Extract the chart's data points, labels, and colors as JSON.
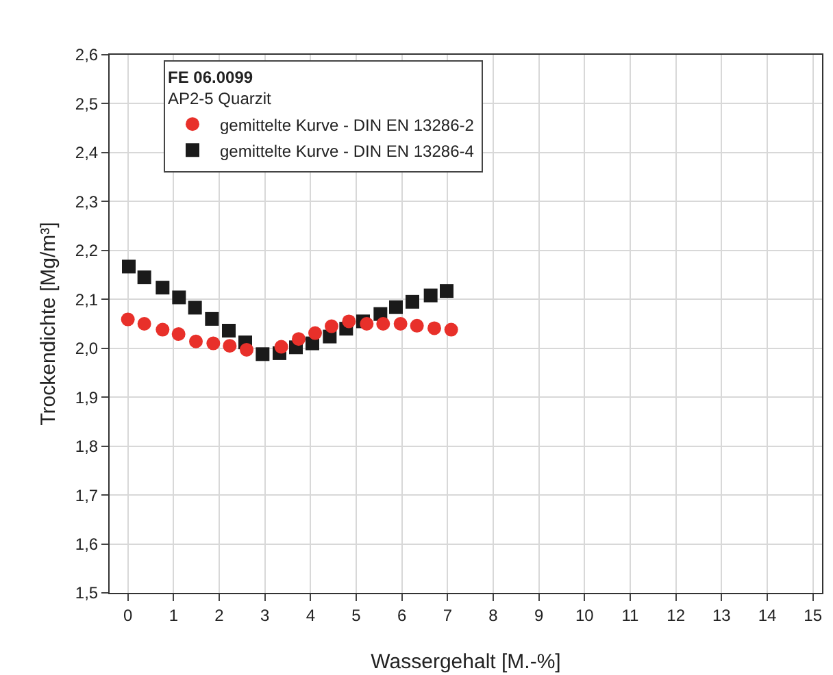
{
  "chart_data": {
    "type": "scatter",
    "xlabel": "Wassergehalt [M.-%]",
    "ylabel": "Trockendichte [Mg/m³]",
    "legend_title": "FE 06.0099",
    "annotations": [
      "AP2-5 Quarzit"
    ],
    "xlim": [
      -0.4,
      15.2
    ],
    "xticks": [
      0,
      1,
      2,
      3,
      4,
      5,
      6,
      7,
      8,
      9,
      10,
      11,
      12,
      13,
      14,
      15
    ],
    "ylim": [
      1.5,
      2.6
    ],
    "yticks": [
      {
        "value": 1.5,
        "label": "1,5"
      },
      {
        "value": 1.6,
        "label": "1,6"
      },
      {
        "value": 1.7,
        "label": "1,7"
      },
      {
        "value": 1.8,
        "label": "1,8"
      },
      {
        "value": 1.9,
        "label": "1,9"
      },
      {
        "value": 2.0,
        "label": "2,0"
      },
      {
        "value": 2.1,
        "label": "2,1"
      },
      {
        "value": 2.2,
        "label": "2,2"
      },
      {
        "value": 2.3,
        "label": "2,3"
      },
      {
        "value": 2.4,
        "label": "2,4"
      },
      {
        "value": 2.5,
        "label": "2,5"
      },
      {
        "value": 2.6,
        "label": "2,6"
      }
    ],
    "grid": true,
    "legend": "top",
    "series": [
      {
        "name": "gemittelte Kurve - DIN EN 13286-2",
        "color": "#e8302a",
        "marker": "circle",
        "x": [
          0,
          0.36,
          0.76,
          1.11,
          1.49,
          1.87,
          2.23,
          2.6,
          2.97,
          3.36,
          3.74,
          4.1,
          4.46,
          4.84,
          5.23,
          5.59,
          5.97,
          6.33,
          6.71,
          7.08
        ],
        "values": [
          2.059,
          2.05,
          2.038,
          2.029,
          2.014,
          2.01,
          2.005,
          1.997,
          null,
          2.003,
          2.019,
          2.031,
          2.045,
          2.055,
          2.05,
          2.05,
          2.05,
          2.046,
          2.041,
          2.038
        ]
      },
      {
        "name": "gemittelte Kurve - DIN EN 13286-4",
        "color": "#1a1a1a",
        "marker": "square",
        "x": [
          0.02,
          0.36,
          0.76,
          1.12,
          1.47,
          1.84,
          2.21,
          2.57,
          2.95,
          3.32,
          3.68,
          4.04,
          4.42,
          4.78,
          5.15,
          5.53,
          5.87,
          6.23,
          6.63,
          6.98
        ],
        "values": [
          2.167,
          2.145,
          2.124,
          2.104,
          2.083,
          2.06,
          2.036,
          2.012,
          1.988,
          1.99,
          2.002,
          2.01,
          2.024,
          2.04,
          2.055,
          2.07,
          2.084,
          2.095,
          2.108,
          2.117
        ]
      }
    ]
  }
}
